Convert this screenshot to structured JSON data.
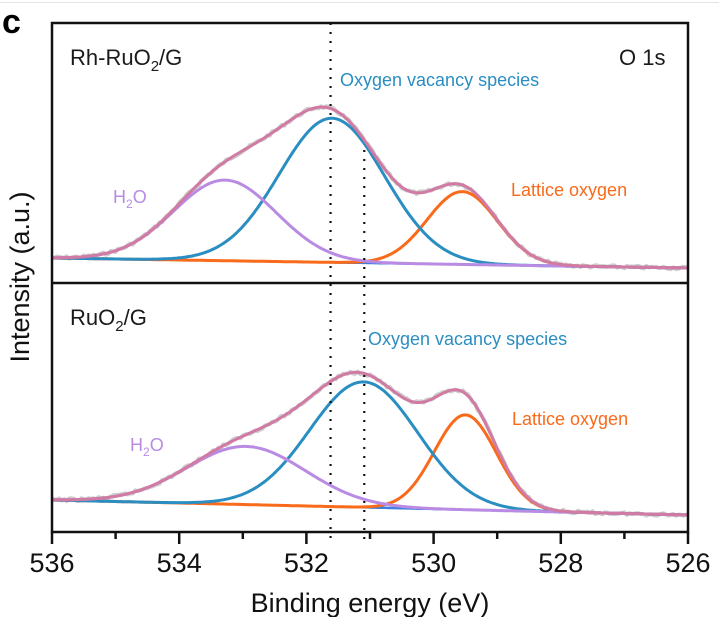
{
  "chart_data": {
    "type": "line",
    "panel_letter": "c",
    "region_label": "O 1s",
    "xlabel": "Binding energy (eV)",
    "ylabel": "Intensity (a.u.)",
    "xlim": [
      536,
      526
    ],
    "x_reversed": true,
    "x_ticks": [
      536,
      534,
      532,
      530,
      528,
      526
    ],
    "x_minor_ticks": [
      535,
      533,
      531,
      529,
      527
    ],
    "grid": false,
    "reference_lines_eV": [
      531.62,
      531.09
    ],
    "colors": {
      "raw": "#c8c8c8",
      "envelope": "#d07aa4",
      "oxygen_vacancy": "#2a8ec2",
      "lattice_oxygen": "#f96a1b",
      "h2o": "#b98be3",
      "background": "#3f7fe0",
      "reference_line": "#111111"
    },
    "panels": [
      {
        "sample": {
          "main": "Rh-RuO",
          "sub": "2",
          "suffix": "/G"
        },
        "baseline": {
          "left": 0.0,
          "right": -0.06
        },
        "components": [
          {
            "name": "Oxygen vacancy species",
            "key": "oxygen_vacancy",
            "center_eV": 531.6,
            "height": 0.93,
            "fwhm_eV": 1.95
          },
          {
            "name": "Lattice oxygen",
            "key": "lattice_oxygen",
            "center_eV": 529.55,
            "height": 0.47,
            "fwhm_eV": 1.3
          },
          {
            "name": "H2O",
            "key": "h2o",
            "center_eV": 533.28,
            "height": 0.52,
            "fwhm_eV": 1.9
          }
        ],
        "annotations": [
          {
            "text": "Oxygen vacancy species",
            "key": "oxygen_vacancy"
          },
          {
            "text": "Lattice oxygen",
            "key": "lattice_oxygen"
          },
          {
            "main": "H",
            "sub": "2",
            "suffix": "O",
            "key": "h2o"
          }
        ]
      },
      {
        "sample": {
          "main": "RuO",
          "sub": "2",
          "suffix": "/G"
        },
        "baseline": {
          "left": 0.0,
          "right": -0.09
        },
        "components": [
          {
            "name": "Oxygen vacancy species",
            "key": "oxygen_vacancy",
            "center_eV": 531.1,
            "height": 0.82,
            "fwhm_eV": 2.0
          },
          {
            "name": "Lattice oxygen",
            "key": "lattice_oxygen",
            "center_eV": 529.5,
            "height": 0.62,
            "fwhm_eV": 1.15
          },
          {
            "name": "H2O",
            "key": "h2o",
            "center_eV": 532.95,
            "height": 0.38,
            "fwhm_eV": 2.2
          }
        ],
        "annotations": [
          {
            "text": "Oxygen vacancy species",
            "key": "oxygen_vacancy"
          },
          {
            "text": "Lattice oxygen",
            "key": "lattice_oxygen"
          },
          {
            "main": "H",
            "sub": "2",
            "suffix": "O",
            "key": "h2o"
          }
        ]
      }
    ]
  }
}
